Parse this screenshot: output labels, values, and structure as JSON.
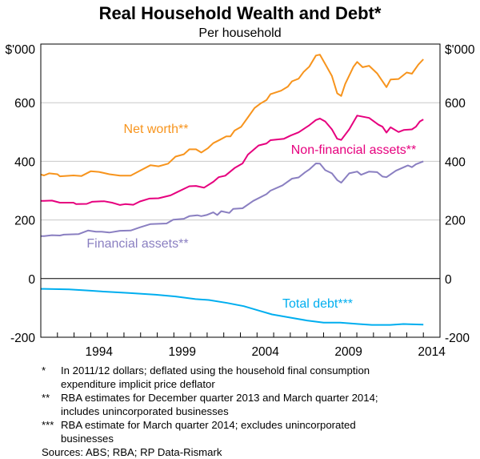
{
  "chart_data": {
    "type": "line",
    "title": "Real Household Wealth and Debt*",
    "subtitle": "Per household",
    "ylabel_left": "$'000",
    "ylabel_right": "$'000",
    "xlim": [
      1991,
      2015
    ],
    "ylim": [
      -200,
      800
    ],
    "x_ticks": [
      "1994",
      "1999",
      "2004",
      "2009",
      "2014"
    ],
    "y_ticks": [
      600,
      400,
      200,
      0,
      -200
    ],
    "grid": true,
    "colors": {
      "net_worth": "#f7941d",
      "non_financial": "#e6007e",
      "financial": "#8a7fc1",
      "debt": "#00aeef",
      "grid": "#c8c8c8"
    },
    "series": [
      {
        "name": "Net worth**",
        "color": "#f7941d",
        "points": [
          [
            1991.0,
            355
          ],
          [
            1991.19,
            352
          ],
          [
            1991.5,
            359
          ],
          [
            1992.0,
            356
          ],
          [
            1992.15,
            349
          ],
          [
            1992.96,
            352
          ],
          [
            1993.45,
            350
          ],
          [
            1994.0,
            366
          ],
          [
            1994.5,
            364
          ],
          [
            1995.12,
            356
          ],
          [
            1995.76,
            351
          ],
          [
            1996.4,
            351
          ],
          [
            1996.96,
            368
          ],
          [
            1997.6,
            387
          ],
          [
            1998.08,
            383
          ],
          [
            1998.65,
            392
          ],
          [
            1999.1,
            416
          ],
          [
            1999.6,
            424
          ],
          [
            1999.93,
            441
          ],
          [
            2000.33,
            441
          ],
          [
            2000.65,
            430
          ],
          [
            2001.05,
            445
          ],
          [
            2001.37,
            462
          ],
          [
            2001.75,
            473
          ],
          [
            2002.15,
            485
          ],
          [
            2002.4,
            485
          ],
          [
            2002.65,
            505
          ],
          [
            2003.05,
            518
          ],
          [
            2003.45,
            550
          ],
          [
            2003.85,
            582
          ],
          [
            2004.2,
            597
          ],
          [
            2004.57,
            609
          ],
          [
            2004.81,
            629
          ],
          [
            2005.45,
            641
          ],
          [
            2005.85,
            655
          ],
          [
            2006.1,
            673
          ],
          [
            2006.5,
            682
          ],
          [
            2006.8,
            705
          ],
          [
            2007.14,
            723
          ],
          [
            2007.54,
            761
          ],
          [
            2007.78,
            764
          ],
          [
            2008.1,
            732
          ],
          [
            2008.5,
            691
          ],
          [
            2008.82,
            632
          ],
          [
            2009.06,
            623
          ],
          [
            2009.3,
            664
          ],
          [
            2009.8,
            723
          ],
          [
            2010.02,
            739
          ],
          [
            2010.35,
            721
          ],
          [
            2010.74,
            726
          ],
          [
            2011.22,
            700
          ],
          [
            2011.78,
            653
          ],
          [
            2012.03,
            679
          ],
          [
            2012.51,
            681
          ],
          [
            2013.0,
            703
          ],
          [
            2013.31,
            699
          ],
          [
            2013.7,
            730
          ],
          [
            2014.0,
            748
          ]
        ]
      },
      {
        "name": "Non-financial assets**",
        "color": "#e6007e",
        "points": [
          [
            1991.0,
            265
          ],
          [
            1991.19,
            265
          ],
          [
            1991.67,
            266
          ],
          [
            1992.15,
            259
          ],
          [
            1992.96,
            259
          ],
          [
            1993.12,
            254
          ],
          [
            1993.76,
            255
          ],
          [
            1994.08,
            262
          ],
          [
            1994.8,
            264
          ],
          [
            1995.28,
            259
          ],
          [
            1995.76,
            251
          ],
          [
            1996.08,
            254
          ],
          [
            1996.56,
            252
          ],
          [
            1996.96,
            263
          ],
          [
            1997.52,
            273
          ],
          [
            1998.08,
            274
          ],
          [
            1998.8,
            284
          ],
          [
            1999.2,
            295
          ],
          [
            1999.93,
            315
          ],
          [
            2000.33,
            316
          ],
          [
            2000.81,
            310
          ],
          [
            2001.37,
            330
          ],
          [
            2001.69,
            346
          ],
          [
            2002.09,
            351
          ],
          [
            2002.65,
            377
          ],
          [
            2003.13,
            393
          ],
          [
            2003.45,
            423
          ],
          [
            2004.09,
            454
          ],
          [
            2004.57,
            461
          ],
          [
            2004.81,
            472
          ],
          [
            2005.62,
            477
          ],
          [
            2006.02,
            488
          ],
          [
            2006.5,
            499
          ],
          [
            2007.14,
            523
          ],
          [
            2007.54,
            541
          ],
          [
            2007.78,
            546
          ],
          [
            2008.1,
            536
          ],
          [
            2008.5,
            509
          ],
          [
            2008.82,
            477
          ],
          [
            2009.06,
            473
          ],
          [
            2009.54,
            509
          ],
          [
            2010.02,
            556
          ],
          [
            2010.74,
            548
          ],
          [
            2011.3,
            525
          ],
          [
            2011.54,
            518
          ],
          [
            2011.78,
            498
          ],
          [
            2012.03,
            516
          ],
          [
            2012.51,
            500
          ],
          [
            2012.83,
            507
          ],
          [
            2013.31,
            509
          ],
          [
            2013.55,
            518
          ],
          [
            2013.79,
            536
          ],
          [
            2014.0,
            543
          ]
        ]
      },
      {
        "name": "Financial assets**",
        "color": "#8a7fc1",
        "points": [
          [
            1991.0,
            145
          ],
          [
            1991.19,
            145
          ],
          [
            1991.67,
            148
          ],
          [
            1992.15,
            147
          ],
          [
            1992.39,
            150
          ],
          [
            1993.28,
            152
          ],
          [
            1993.84,
            164
          ],
          [
            1994.32,
            160
          ],
          [
            1994.64,
            160
          ],
          [
            1995.12,
            157
          ],
          [
            1995.76,
            163
          ],
          [
            1996.4,
            164
          ],
          [
            1996.96,
            175
          ],
          [
            1997.6,
            186
          ],
          [
            1998.56,
            188
          ],
          [
            1998.96,
            201
          ],
          [
            1999.6,
            204
          ],
          [
            1999.93,
            213
          ],
          [
            2000.41,
            216
          ],
          [
            2000.65,
            213
          ],
          [
            2000.97,
            217
          ],
          [
            2001.37,
            226
          ],
          [
            2001.61,
            217
          ],
          [
            2001.85,
            230
          ],
          [
            2002.33,
            224
          ],
          [
            2002.57,
            238
          ],
          [
            2003.13,
            240
          ],
          [
            2003.77,
            265
          ],
          [
            2004.57,
            288
          ],
          [
            2004.81,
            300
          ],
          [
            2005.53,
            318
          ],
          [
            2006.1,
            341
          ],
          [
            2006.5,
            345
          ],
          [
            2006.9,
            363
          ],
          [
            2007.14,
            372
          ],
          [
            2007.54,
            393
          ],
          [
            2007.78,
            392
          ],
          [
            2008.1,
            370
          ],
          [
            2008.5,
            359
          ],
          [
            2008.82,
            336
          ],
          [
            2009.06,
            327
          ],
          [
            2009.54,
            359
          ],
          [
            2010.02,
            365
          ],
          [
            2010.26,
            354
          ],
          [
            2010.74,
            365
          ],
          [
            2011.22,
            363
          ],
          [
            2011.54,
            348
          ],
          [
            2011.78,
            346
          ],
          [
            2012.35,
            368
          ],
          [
            2012.83,
            380
          ],
          [
            2013.07,
            386
          ],
          [
            2013.31,
            380
          ],
          [
            2013.55,
            390
          ],
          [
            2014.0,
            400
          ]
        ]
      },
      {
        "name": "Total debt***",
        "color": "#00aeef",
        "points": [
          [
            1991.0,
            -35
          ],
          [
            1991.2,
            -35
          ],
          [
            1992.7,
            -37
          ],
          [
            1993.9,
            -41
          ],
          [
            1995.0,
            -45
          ],
          [
            1996.3,
            -49
          ],
          [
            1997.9,
            -55
          ],
          [
            1999.1,
            -61
          ],
          [
            2000.3,
            -70
          ],
          [
            2001.1,
            -73
          ],
          [
            2002.2,
            -83
          ],
          [
            2003.2,
            -94
          ],
          [
            2004.1,
            -109
          ],
          [
            2004.9,
            -122
          ],
          [
            2006.0,
            -133
          ],
          [
            2007.0,
            -143
          ],
          [
            2008.0,
            -150
          ],
          [
            2009.0,
            -150
          ],
          [
            2010.1,
            -155
          ],
          [
            2010.9,
            -158
          ],
          [
            2012.0,
            -158
          ],
          [
            2012.8,
            -155
          ],
          [
            2014.0,
            -157
          ]
        ]
      }
    ]
  },
  "footnotes": [
    {
      "marker": "*",
      "lines": [
        "In 2011/12 dollars; deflated using the household final consumption",
        "expenditure implicit price deflator"
      ]
    },
    {
      "marker": "**",
      "lines": [
        "RBA estimates for December quarter 2013 and March quarter 2014;",
        "includes unincorporated businesses"
      ]
    },
    {
      "marker": "***",
      "lines": [
        "RBA estimate for March quarter 2014; excludes unincorporated",
        "businesses"
      ]
    }
  ],
  "sources": "Sources: ABS; RBA; RP Data-Rismark"
}
